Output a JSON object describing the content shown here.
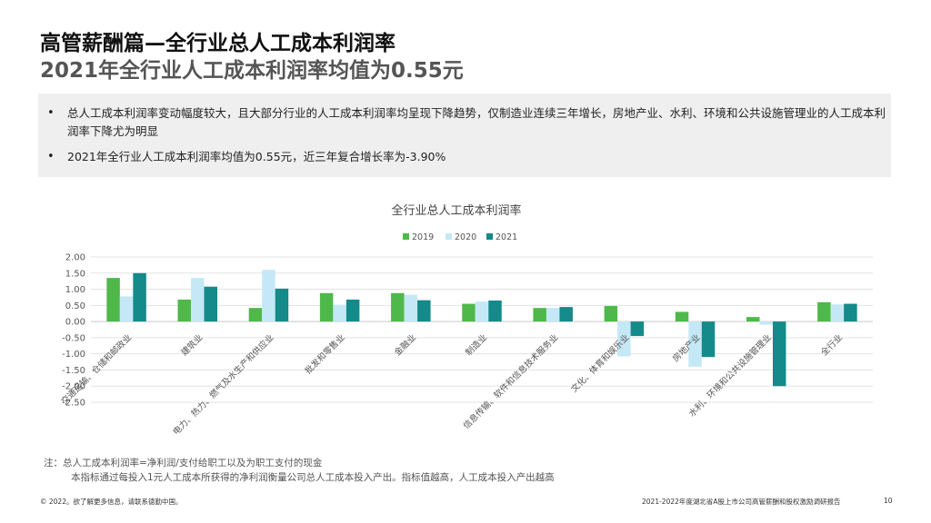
{
  "header": {
    "title": "高管薪酬篇—全行业总人工成本利润率",
    "subtitle": "2021年全行业人工成本利润率均值为0.55元"
  },
  "summary": {
    "bullet_symbol": "•",
    "points": [
      "总人工成本利润率变动幅度较大，且大部分行业的人工成本利润率均呈现下降趋势，仅制造业连续三年增长，房地产业、水利、环境和公共设施管理业的人工成本利润率下降尤为明显",
      "2021年全行业人工成本利润率均值为0.55元，近三年复合增长率为-3.90%"
    ]
  },
  "chart_data": {
    "type": "bar",
    "title": "全行业总人工成本利润率",
    "categories": [
      "交通运输、仓储和邮政业",
      "建筑业",
      "电力、热力、燃气及水生产和供应业",
      "批发和零售业",
      "金融业",
      "制造业",
      "信息传输、软件和信息技术服务业",
      "文化、体育和娱乐业",
      "房地产业",
      "水利、环境和公共设施管理业",
      "全行业"
    ],
    "series": [
      {
        "name": "2019",
        "color": "#4fb84a",
        "values": [
          1.35,
          0.68,
          0.42,
          0.88,
          0.88,
          0.55,
          0.42,
          0.48,
          0.3,
          0.14,
          0.6
        ]
      },
      {
        "name": "2020",
        "color": "#c5e8f6",
        "values": [
          0.78,
          1.35,
          1.6,
          0.52,
          0.83,
          0.62,
          0.42,
          -1.08,
          -1.4,
          -0.1,
          0.53
        ]
      },
      {
        "name": "2021",
        "color": "#148a8a",
        "values": [
          1.5,
          1.08,
          1.02,
          0.68,
          0.66,
          0.65,
          0.45,
          -0.45,
          -1.1,
          -2.0,
          0.55
        ]
      }
    ],
    "yticks": [
      "2.00",
      "1.50",
      "1.00",
      "0.50",
      "0.00",
      "-0.50",
      "-1.00",
      "-1.50",
      "-2.00",
      "-2.50"
    ],
    "ylim": [
      -2.5,
      2.0
    ],
    "grid": true,
    "legend_position": "top-center"
  },
  "notes": {
    "line1": "注：总人工成本利润率=净利润/支付给职工以及为职工支付的现金",
    "line2": "本指标通过每投入1元人工成本所获得的净利润衡量公司总人工成本投入产出。指标值越高，人工成本投入产出越高"
  },
  "footer": {
    "left": "© 2022。欲了解更多信息，请联系德勤中国。",
    "right": "2021-2022年度湖北省A股上市公司高管薪酬和股权激励调研报告",
    "page": "10"
  }
}
